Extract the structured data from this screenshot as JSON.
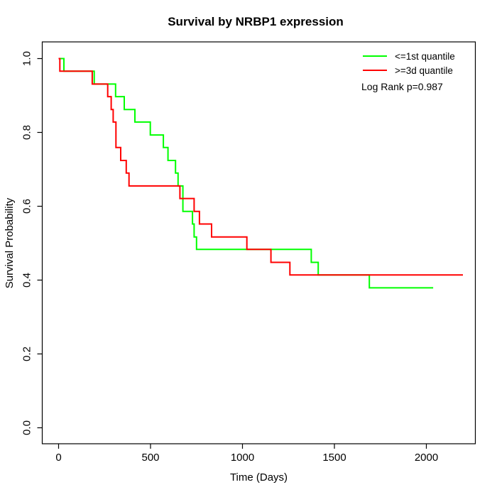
{
  "chart_data": {
    "type": "line",
    "subtype": "kaplan-meier-step",
    "title": "Survival by NRBP1 expression",
    "xlabel": "Time (Days)",
    "ylabel": "Survival Probability",
    "x_ticks": [
      {
        "label": "0",
        "value": 0
      },
      {
        "label": "500",
        "value": 500
      },
      {
        "label": "1000",
        "value": 1000
      },
      {
        "label": "1500",
        "value": 1500
      },
      {
        "label": "2000",
        "value": 2000
      }
    ],
    "y_ticks": [
      {
        "label": "0.0",
        "value": 0.0
      },
      {
        "label": "0.2",
        "value": 0.2
      },
      {
        "label": "0.4",
        "value": 0.4
      },
      {
        "label": "0.6",
        "value": 0.6
      },
      {
        "label": "0.8",
        "value": 0.8
      },
      {
        "label": "1.0",
        "value": 1.0
      }
    ],
    "xlim": [
      -88,
      2266
    ],
    "ylim": [
      -0.04,
      1.04
    ],
    "grid": false,
    "legend_position": "top-right",
    "annotation": "Log Rank p=0.987",
    "series": [
      {
        "name": "<=1st quantile",
        "color": "#00ff00",
        "end_time": 2037,
        "steps": [
          [
            0,
            1.0
          ],
          [
            29,
            0.966
          ],
          [
            194,
            0.931
          ],
          [
            310,
            0.897
          ],
          [
            357,
            0.862
          ],
          [
            415,
            0.828
          ],
          [
            499,
            0.793
          ],
          [
            570,
            0.759
          ],
          [
            595,
            0.724
          ],
          [
            636,
            0.69
          ],
          [
            650,
            0.655
          ],
          [
            676,
            0.586
          ],
          [
            728,
            0.552
          ],
          [
            737,
            0.517
          ],
          [
            750,
            0.483
          ],
          [
            1374,
            0.448
          ],
          [
            1412,
            0.414
          ],
          [
            1690,
            0.379
          ]
        ]
      },
      {
        "name": ">=3d quantile",
        "color": "#ff0000",
        "end_time": 2199,
        "steps": [
          [
            0,
            1.0
          ],
          [
            7,
            0.966
          ],
          [
            183,
            0.931
          ],
          [
            267,
            0.897
          ],
          [
            286,
            0.862
          ],
          [
            297,
            0.828
          ],
          [
            312,
            0.759
          ],
          [
            338,
            0.724
          ],
          [
            368,
            0.69
          ],
          [
            383,
            0.655
          ],
          [
            660,
            0.621
          ],
          [
            737,
            0.586
          ],
          [
            766,
            0.552
          ],
          [
            832,
            0.517
          ],
          [
            1024,
            0.483
          ],
          [
            1155,
            0.448
          ],
          [
            1258,
            0.414
          ]
        ]
      }
    ]
  }
}
